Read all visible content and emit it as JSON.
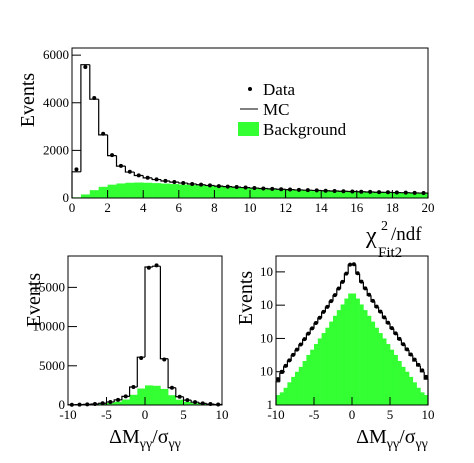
{
  "chart_data": [
    {
      "type": "histogram",
      "y_label": "Events",
      "x_label_parts": [
        {
          "text": "χ"
        },
        {
          "text": "2",
          "shift": "sup"
        },
        {
          "text": "Fit2",
          "shift": "sub"
        },
        {
          "text": "/ndf"
        }
      ],
      "xlim": [
        0,
        20
      ],
      "ylim": [
        0,
        6300
      ],
      "xticks": [
        0,
        2,
        4,
        6,
        8,
        10,
        12,
        14,
        16,
        18,
        20
      ],
      "yticks": [
        0,
        2000,
        4000,
        6000
      ],
      "legend": "center",
      "bins": [
        0,
        0.5,
        1,
        1.5,
        2,
        2.5,
        3,
        3.5,
        4,
        4.5,
        5,
        5.5,
        6,
        6.5,
        7,
        7.5,
        8,
        8.5,
        9,
        9.5,
        10,
        10.5,
        11,
        11.5,
        12,
        12.5,
        13,
        13.5,
        14,
        14.5,
        15,
        15.5,
        16,
        16.5,
        17,
        17.5,
        18,
        18.5,
        19,
        19.5,
        20
      ],
      "series": [
        {
          "name": "Background",
          "style": "fill",
          "color": "#33ff33",
          "values": [
            30,
            150,
            330,
            470,
            560,
            610,
            640,
            650,
            640,
            625,
            605,
            585,
            565,
            545,
            525,
            505,
            485,
            465,
            447,
            430,
            413,
            397,
            382,
            368,
            355,
            342,
            330,
            318,
            307,
            296,
            286,
            276,
            266,
            257,
            248,
            240,
            232,
            224,
            216,
            208
          ]
        },
        {
          "name": "MC",
          "style": "step",
          "color": "#000000",
          "values": [
            1100,
            5600,
            4150,
            2650,
            1780,
            1340,
            1090,
            945,
            845,
            775,
            715,
            668,
            628,
            588,
            558,
            528,
            498,
            478,
            458,
            438,
            418,
            398,
            383,
            368,
            353,
            338,
            328,
            318,
            303,
            293,
            283,
            273,
            263,
            253,
            243,
            238,
            228,
            223,
            213,
            208
          ]
        },
        {
          "name": "Data",
          "style": "points",
          "color": "#000000",
          "values": [
            1200,
            5500,
            4200,
            2700,
            1800,
            1350,
            1100,
            950,
            850,
            780,
            720,
            670,
            630,
            590,
            560,
            530,
            500,
            480,
            460,
            440,
            420,
            400,
            385,
            370,
            355,
            340,
            330,
            320,
            305,
            295,
            285,
            275,
            265,
            255,
            245,
            240,
            230,
            225,
            215,
            210
          ]
        }
      ]
    },
    {
      "type": "histogram",
      "y_label": "Events",
      "x_label_parts": [
        {
          "text": "ΔM"
        },
        {
          "text": "γγ",
          "shift": "sub"
        },
        {
          "text": "/σ"
        },
        {
          "text": "γγ",
          "shift": "sub"
        }
      ],
      "xlim": [
        -10,
        10
      ],
      "ylim": [
        0,
        19000
      ],
      "xticks": [
        -10,
        -5,
        0,
        5,
        10
      ],
      "yticks": [
        0,
        5000,
        10000,
        15000
      ],
      "bins": [
        -10,
        -9,
        -8,
        -7,
        -6,
        -5,
        -4,
        -3,
        -2,
        -1,
        0,
        1,
        2,
        3,
        4,
        5,
        6,
        7,
        8,
        9,
        10
      ],
      "series": [
        {
          "style": "fill",
          "color": "#33ff33",
          "values": [
            20,
            35,
            55,
            90,
            150,
            250,
            420,
            700,
            1300,
            2100,
            2500,
            2450,
            2050,
            1250,
            680,
            400,
            240,
            140,
            85,
            50
          ]
        },
        {
          "style": "step",
          "color": "#000000",
          "values": [
            30,
            50,
            80,
            130,
            220,
            380,
            650,
            1100,
            2300,
            6100,
            17600,
            17700,
            5900,
            2200,
            1050,
            620,
            360,
            210,
            120,
            70
          ]
        },
        {
          "style": "points",
          "color": "#000000",
          "values": [
            30,
            50,
            80,
            130,
            220,
            380,
            650,
            1100,
            2300,
            6000,
            17500,
            17800,
            5800,
            2200,
            1050,
            620,
            360,
            210,
            120,
            70
          ]
        }
      ]
    },
    {
      "type": "histogram",
      "y_label": "Events",
      "log_y": true,
      "x_label_parts": [
        {
          "text": "ΔM"
        },
        {
          "text": "γγ",
          "shift": "sub"
        },
        {
          "text": "/σ"
        },
        {
          "text": "γγ",
          "shift": "sub"
        }
      ],
      "xlim": [
        -10,
        10
      ],
      "ylim": [
        1,
        30000
      ],
      "xticks": [
        -10,
        -5,
        0,
        5,
        10
      ],
      "yticks": [
        1,
        10,
        {
          "value": 100,
          "label": "10"
        },
        {
          "value": 1000,
          "label": "10"
        },
        {
          "value": 10000,
          "label": "10"
        }
      ],
      "bins": [
        -10,
        -9.5,
        -9,
        -8.5,
        -8,
        -7.5,
        -7,
        -6.5,
        -6,
        -5.5,
        -5,
        -4.5,
        -4,
        -3.5,
        -3,
        -2.5,
        -2,
        -1.5,
        -1,
        -0.5,
        0,
        0.5,
        1,
        1.5,
        2,
        2.5,
        3,
        3.5,
        4,
        4.5,
        5,
        5.5,
        6,
        6.5,
        7,
        7.5,
        8,
        8.5,
        9,
        9.5,
        10
      ],
      "series": [
        {
          "style": "fill",
          "color": "#33ff33",
          "values": [
            2.0,
            2.4,
            3.3,
            4.8,
            7,
            10,
            14,
            21,
            32,
            46,
            68,
            100,
            145,
            210,
            320,
            480,
            710,
            1050,
            1580,
            2240,
            2240,
            1580,
            1050,
            710,
            480,
            320,
            210,
            145,
            100,
            68,
            46,
            32,
            21,
            14,
            10,
            7,
            4.8,
            3.3,
            2.4,
            2.0
          ]
        },
        {
          "style": "step",
          "color": "#000000",
          "values": [
            5,
            9,
            14,
            21,
            31,
            44,
            64,
            92,
            136,
            195,
            283,
            410,
            615,
            870,
            1290,
            1960,
            3100,
            4900,
            8700,
            16300,
            16600,
            8800,
            4950,
            3120,
            1990,
            1300,
            870,
            620,
            415,
            285,
            198,
            138,
            93,
            65,
            45,
            31,
            21,
            15,
            10,
            6
          ]
        },
        {
          "style": "points",
          "color": "#000000",
          "values": [
            6,
            10,
            15,
            22,
            32,
            46,
            66,
            95,
            140,
            200,
            290,
            420,
            630,
            890,
            1320,
            2000,
            3160,
            5000,
            8900,
            16500,
            17000,
            9100,
            5100,
            3200,
            2050,
            1350,
            900,
            640,
            430,
            295,
            205,
            142,
            97,
            67,
            47,
            33,
            23,
            16,
            11,
            7
          ]
        }
      ]
    }
  ]
}
